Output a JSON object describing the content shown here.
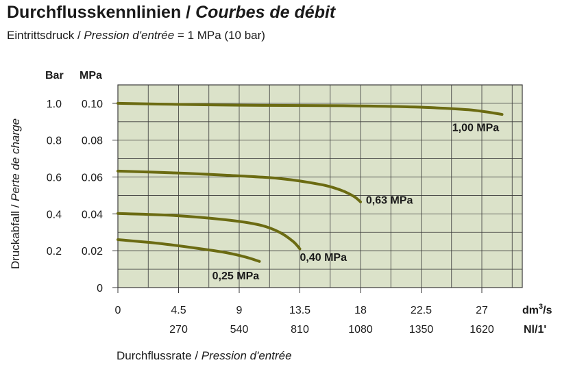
{
  "title_de": "Durchflusskennlinien",
  "title_sep": " / ",
  "title_fr": "Courbes de débit",
  "subtitle_de": "Eintrittsdruck / ",
  "subtitle_fr": "Pression d'entrée",
  "subtitle_val": "  = 1 MPa (10 bar)",
  "colors": {
    "plot_bg": "#dbe2c9",
    "curve": "#6b6b12",
    "grid": "#3a3a3a"
  },
  "chart_data": {
    "type": "line",
    "xlabel_de": "Durchflussrate / ",
    "xlabel_fr": "Pression d'entrée",
    "ylabel_de": "Druckabfall / ",
    "ylabel_fr": "Perte de charge",
    "x_unit": "dm³/s",
    "x2_unit": "Nl/1'",
    "y_unit_left": "Bar",
    "y_unit_right": "MPa",
    "xlim": [
      0,
      30
    ],
    "ylim": [
      0,
      0.11
    ],
    "x_ticks": [
      {
        "v": 0,
        "label": "0"
      },
      {
        "v": 4.5,
        "label": "4.5"
      },
      {
        "v": 9,
        "label": "9"
      },
      {
        "v": 13.5,
        "label": "13.5"
      },
      {
        "v": 18,
        "label": "18"
      },
      {
        "v": 22.5,
        "label": "22.5"
      },
      {
        "v": 27,
        "label": "27"
      }
    ],
    "x2_ticks": [
      {
        "v": 4.5,
        "label": "270"
      },
      {
        "v": 9,
        "label": "540"
      },
      {
        "v": 13.5,
        "label": "810"
      },
      {
        "v": 18,
        "label": "1080"
      },
      {
        "v": 22.5,
        "label": "1350"
      },
      {
        "v": 27,
        "label": "1620"
      }
    ],
    "y_ticks": [
      {
        "v": 0,
        "bar": "",
        "mpa": "0"
      },
      {
        "v": 0.02,
        "bar": "0.2",
        "mpa": "0.02"
      },
      {
        "v": 0.04,
        "bar": "0.4",
        "mpa": "0.04"
      },
      {
        "v": 0.06,
        "bar": "0.6",
        "mpa": "0.06"
      },
      {
        "v": 0.08,
        "bar": "0.8",
        "mpa": "0.08"
      },
      {
        "v": 0.1,
        "bar": "1.0",
        "mpa": "0.10"
      }
    ],
    "series": [
      {
        "name": "1,00 MPa",
        "label_at": [
          24.8,
          0.085
        ],
        "x": [
          0,
          4,
          9,
          14,
          18,
          22,
          26,
          28.5
        ],
        "y": [
          0.1,
          0.0995,
          0.099,
          0.0988,
          0.0986,
          0.098,
          0.0965,
          0.094
        ]
      },
      {
        "name": "0,63 MPa",
        "label_at": [
          18.4,
          0.0455
        ],
        "x": [
          0,
          4,
          8,
          12,
          15,
          16.5,
          17.5,
          18
        ],
        "y": [
          0.0632,
          0.0623,
          0.061,
          0.0592,
          0.056,
          0.053,
          0.0495,
          0.0465
        ]
      },
      {
        "name": "0,40 MPa",
        "label_at": [
          13.5,
          0.0145
        ],
        "x": [
          0,
          4,
          8,
          10.5,
          12,
          13,
          13.5
        ],
        "y": [
          0.0402,
          0.0392,
          0.0368,
          0.034,
          0.03,
          0.025,
          0.021
        ]
      },
      {
        "name": "0,25 MPa",
        "label_at": [
          7,
          0.0045
        ],
        "x": [
          0,
          3,
          6,
          8,
          9.5,
          10.5
        ],
        "y": [
          0.026,
          0.024,
          0.0212,
          0.019,
          0.0165,
          0.0142
        ]
      }
    ]
  }
}
